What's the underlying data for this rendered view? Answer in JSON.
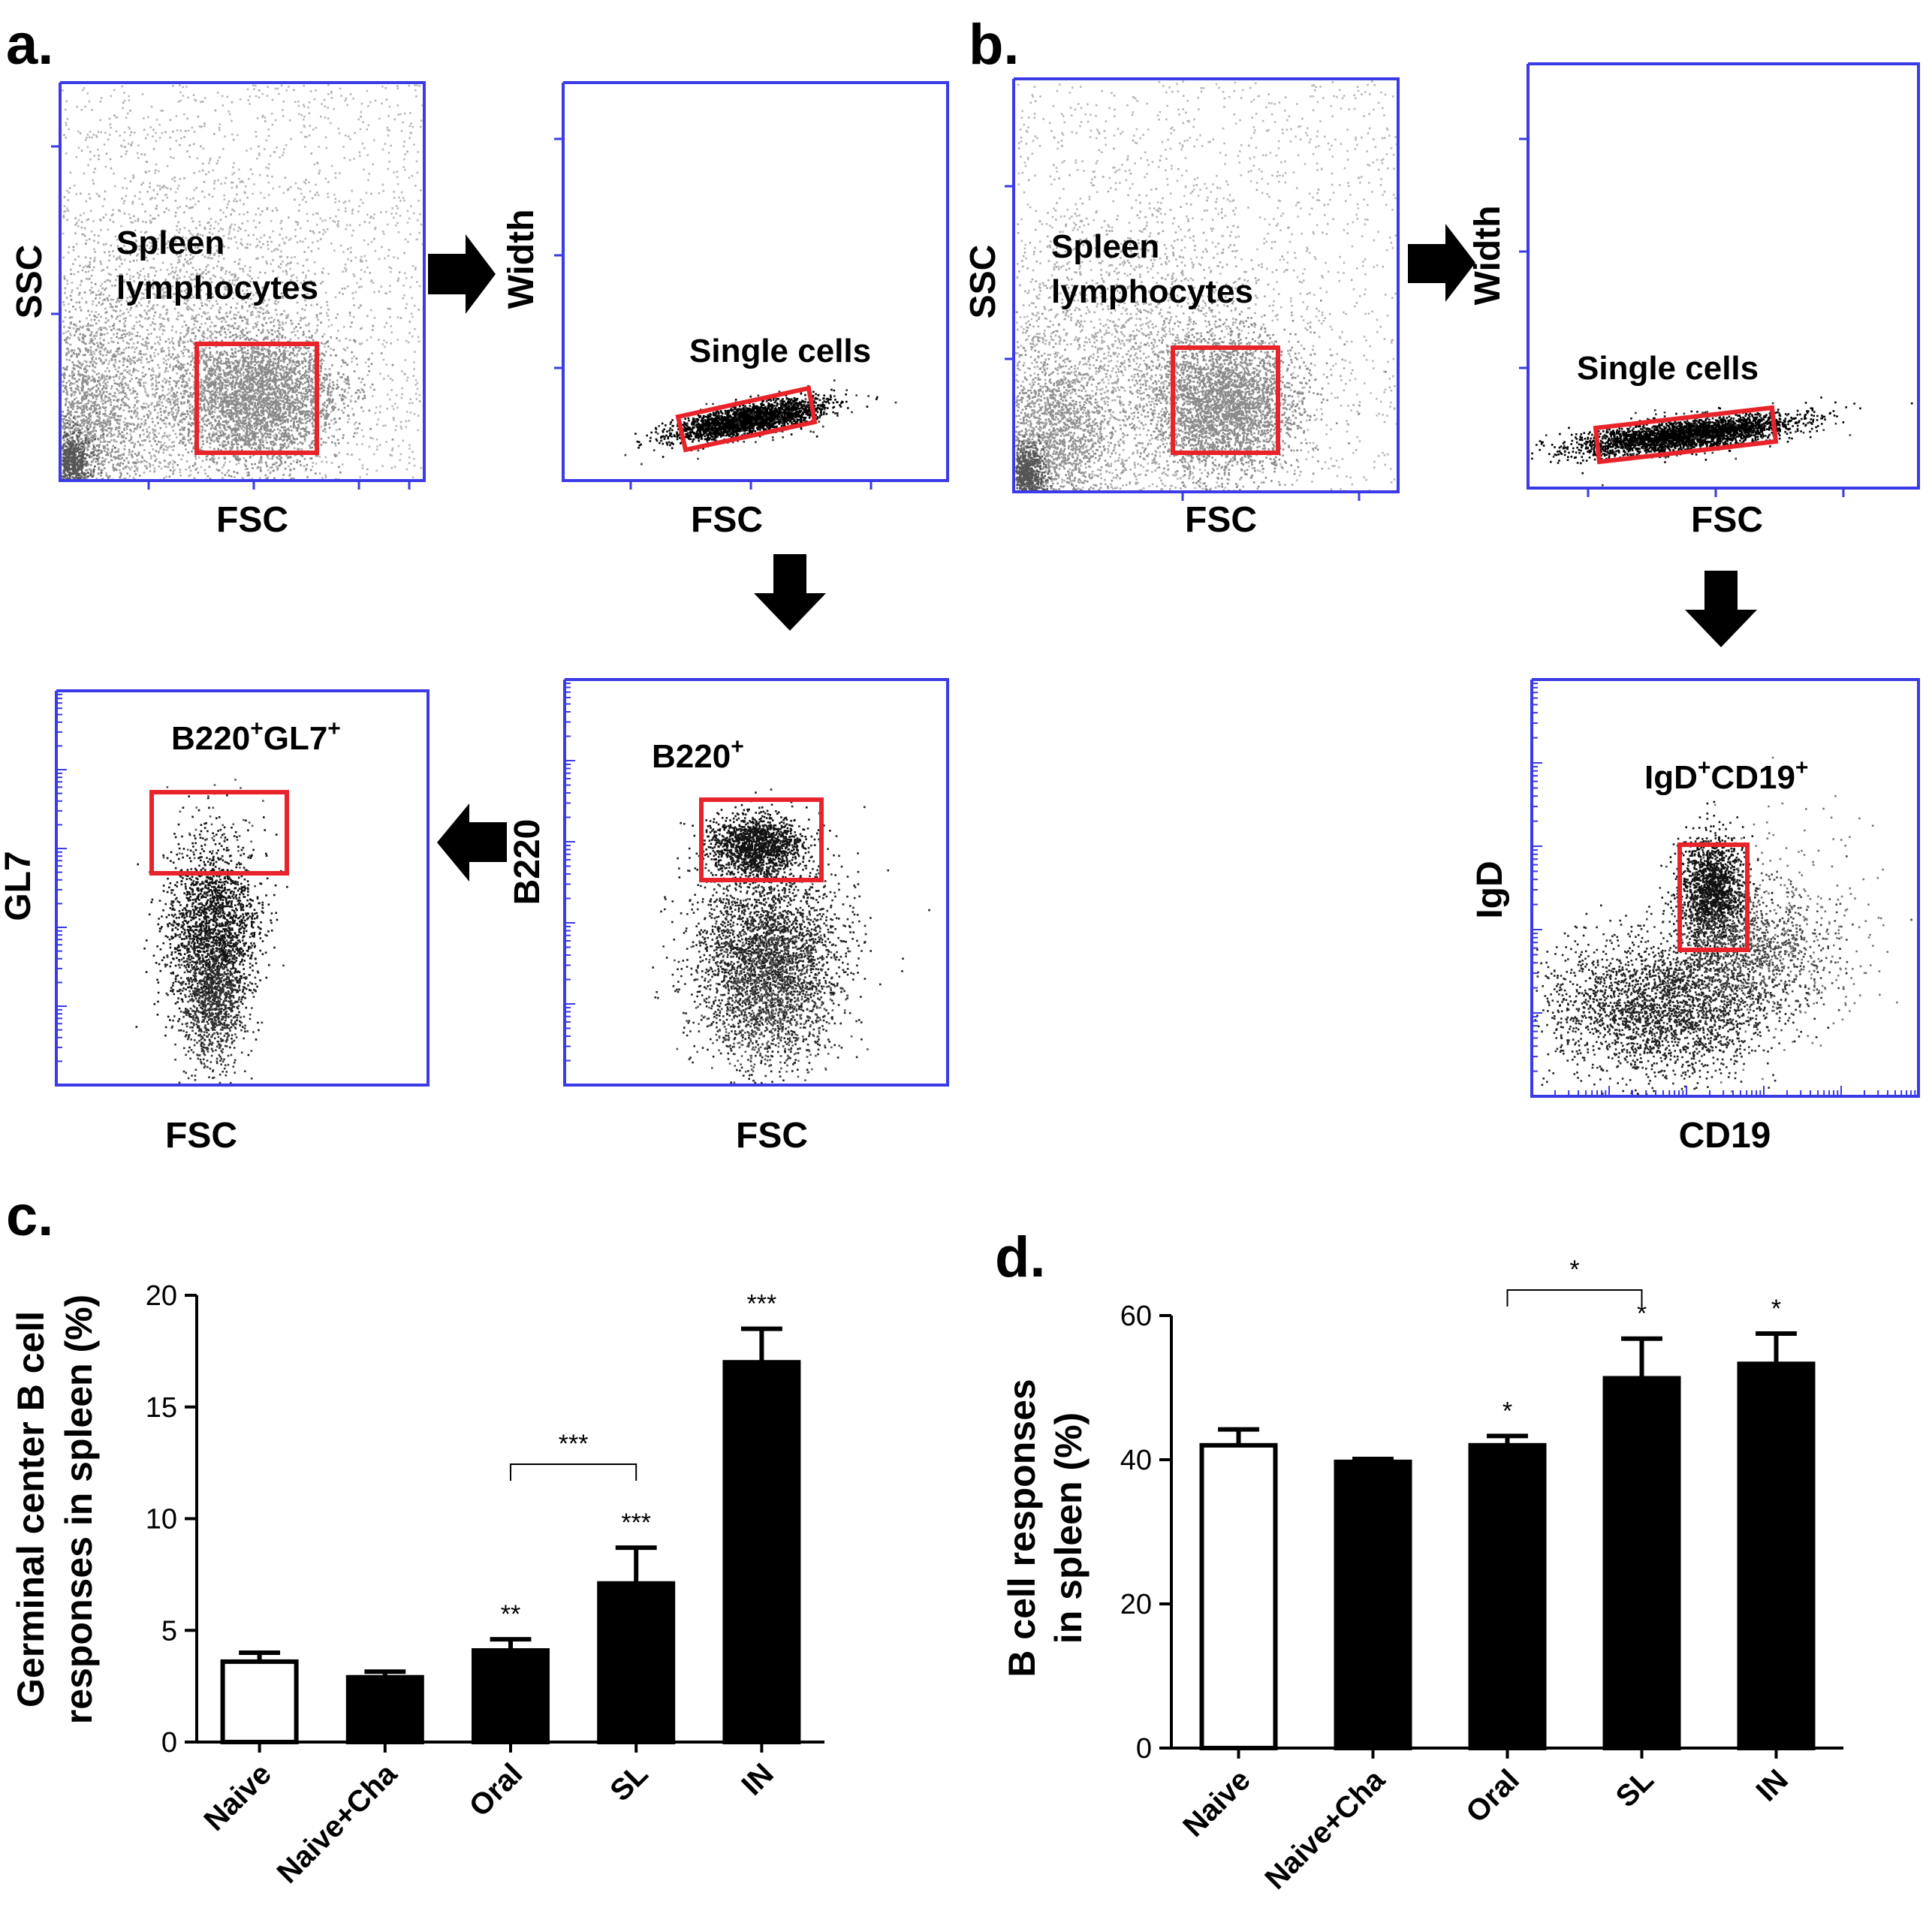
{
  "panel_labels": {
    "a": "a.",
    "b": "b.",
    "c": "c.",
    "d": "d."
  },
  "flow": {
    "a1": {
      "xlabel": "FSC",
      "ylabel": "SSC",
      "gate_label_line1": "Spleen",
      "gate_label_line2": "lymphocytes"
    },
    "a2": {
      "xlabel": "FSC",
      "ylabel": "Width",
      "gate_label": "Single cells"
    },
    "a3": {
      "xlabel": "FSC",
      "ylabel": "B220",
      "gate_label_main": "B220",
      "gate_label_sup": "+"
    },
    "a4": {
      "xlabel": "FSC",
      "ylabel": "GL7",
      "gate_label_p1": "B220",
      "gate_label_s1": "+",
      "gate_label_p2": "GL7",
      "gate_label_s2": "+"
    },
    "b1": {
      "xlabel": "FSC",
      "ylabel": "SSC",
      "gate_label_line1": "Spleen",
      "gate_label_line2": "lymphocytes"
    },
    "b2": {
      "xlabel": "FSC",
      "ylabel": "Width",
      "gate_label": "Single cells"
    },
    "b3": {
      "xlabel": "CD19",
      "ylabel": "IgD",
      "gate_label_p1": "IgD",
      "gate_label_s1": "+",
      "gate_label_p2": "CD19",
      "gate_label_s2": "+"
    }
  },
  "colors": {
    "axis_flow": "#3a3ae6",
    "gate": "#e8232a",
    "bar_fill": "#000000",
    "open_bar_fill": "#ffffff"
  },
  "chart_data": [
    {
      "type": "bar",
      "panel": "c",
      "categories": [
        "Naive",
        "Naive+Cha",
        "Oral",
        "SL",
        "IN"
      ],
      "values": [
        3.6,
        2.9,
        4.1,
        7.1,
        17.0
      ],
      "errors": [
        0.4,
        0.25,
        0.5,
        1.6,
        1.5
      ],
      "open_bars": [
        true,
        false,
        false,
        false,
        false
      ],
      "significance": [
        "",
        "",
        "**",
        "***",
        "***"
      ],
      "bracket": {
        "from": 2,
        "to": 3,
        "label": "***"
      },
      "ylabel_line1": "Germinal center B cell",
      "ylabel_line2": "responses in spleen (%)",
      "xlabel": "",
      "ylim": [
        0,
        20
      ],
      "yticks": [
        0,
        5,
        10,
        15,
        20
      ]
    },
    {
      "type": "bar",
      "panel": "d",
      "categories": [
        "Naive",
        "Naive+Cha",
        "Oral",
        "SL",
        "IN"
      ],
      "values": [
        42,
        39.7,
        42,
        51.3,
        53.3
      ],
      "errors": [
        2.2,
        0.4,
        1.3,
        5.5,
        4.2
      ],
      "open_bars": [
        true,
        false,
        false,
        false,
        false
      ],
      "significance": [
        "",
        "",
        "*",
        "*",
        "*"
      ],
      "bracket": {
        "from": 2,
        "to": 3,
        "label": "*"
      },
      "ylabel_line1": "B cell responses",
      "ylabel_line2": "in spleen (%)",
      "xlabel": "",
      "ylim": [
        0,
        60
      ],
      "yticks": [
        0,
        20,
        40,
        60
      ]
    }
  ]
}
